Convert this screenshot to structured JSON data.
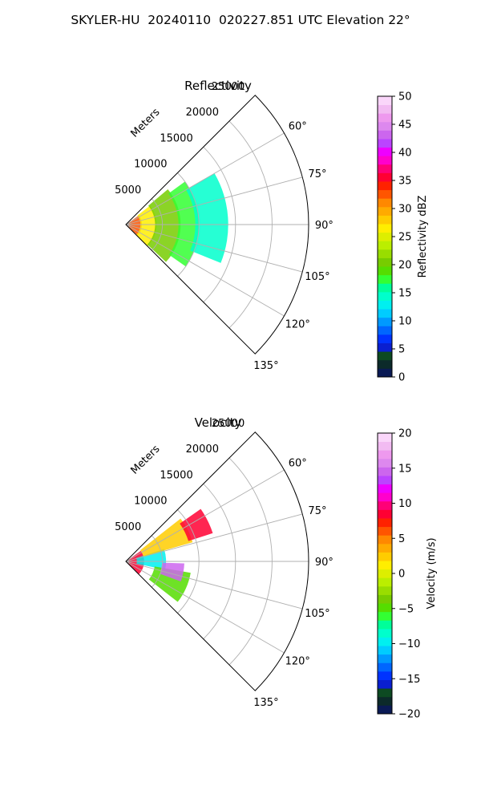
{
  "figure": {
    "title": "SKYLER-HU  20240110  020227.851 UTC Elevation 22°"
  },
  "chart_data": [
    {
      "type": "polar-sector",
      "title": "Reflectivity",
      "radial_label": "Meters",
      "r_ticks": [
        5000,
        10000,
        15000,
        20000,
        25000
      ],
      "r_tick_labels": [
        "5000",
        "10000",
        "15000",
        "20000",
        "25000"
      ],
      "r_max": 25000,
      "theta_range_deg": [
        45,
        135
      ],
      "theta_zero": "N",
      "theta_direction": "clockwise",
      "theta_ticks": [
        60,
        75,
        90,
        105,
        120,
        135
      ],
      "theta_tick_labels": [
        "60°",
        "75°",
        "90°",
        "105°",
        "120°",
        "135°"
      ],
      "grid": true,
      "colorbar": {
        "label": "Reflectivity dBZ",
        "range": [
          0,
          50
        ],
        "ticks": [
          0,
          5,
          10,
          15,
          20,
          25,
          30,
          35,
          40,
          45,
          50
        ],
        "tick_labels": [
          "0",
          "5",
          "10",
          "15",
          "20",
          "25",
          "30",
          "35",
          "40",
          "45",
          "50"
        ],
        "colors": [
          "#0a1a55",
          "#0c2a2a",
          "#0d4a22",
          "#0a1fd0",
          "#0033ff",
          "#0066ff",
          "#0099ff",
          "#00ccff",
          "#00f0f0",
          "#00ffcc",
          "#00ff99",
          "#33ff33",
          "#55dd00",
          "#77cc00",
          "#99dd00",
          "#bbee00",
          "#ddee00",
          "#ffee00",
          "#ffcc00",
          "#ffaa00",
          "#ff8800",
          "#ff5500",
          "#ff2200",
          "#ff0033",
          "#ff0077",
          "#ff00cc",
          "#ee00ff",
          "#bb44ff",
          "#cc66ee",
          "#dd88ee",
          "#ee99ee",
          "#f2bbf2",
          "#fad6fa"
        ]
      },
      "field_bands": [
        {
          "value": 32,
          "r_min": 0,
          "r_max": 2200,
          "az_min": 55,
          "az_max": 133
        },
        {
          "value": 26,
          "r_min": 2000,
          "r_max": 4200,
          "az_min": 52,
          "az_max": 135
        },
        {
          "value": 20,
          "r_min": 4000,
          "r_max": 7500,
          "az_min": 50,
          "az_max": 133
        },
        {
          "value": 17,
          "r_min": 7200,
          "r_max": 10000,
          "az_min": 54,
          "az_max": 125
        },
        {
          "value": 14,
          "r_min": 9500,
          "r_max": 14000,
          "az_min": 60,
          "az_max": 112
        }
      ]
    },
    {
      "type": "polar-sector",
      "title": "Velocity",
      "radial_label": "Meters",
      "r_ticks": [
        5000,
        10000,
        15000,
        20000,
        25000
      ],
      "r_tick_labels": [
        "5000",
        "10000",
        "15000",
        "20000",
        "25000"
      ],
      "r_max": 25000,
      "theta_range_deg": [
        45,
        135
      ],
      "theta_zero": "N",
      "theta_direction": "clockwise",
      "theta_ticks": [
        60,
        75,
        90,
        105,
        120,
        135
      ],
      "theta_tick_labels": [
        "60°",
        "75°",
        "90°",
        "105°",
        "120°",
        "135°"
      ],
      "grid": true,
      "colorbar": {
        "label": "Velocity (m/s)",
        "range": [
          -20,
          20
        ],
        "ticks": [
          -20,
          -15,
          -10,
          -5,
          0,
          5,
          10,
          15,
          20
        ],
        "tick_labels": [
          "−20",
          "−15",
          "−10",
          "−5",
          "0",
          "5",
          "10",
          "15",
          "20"
        ],
        "colors": [
          "#0a1a55",
          "#0c2a2a",
          "#0d4a22",
          "#0a1fd0",
          "#0033ff",
          "#0066ff",
          "#0099ff",
          "#00ccff",
          "#00f0f0",
          "#00ffcc",
          "#00ff99",
          "#33ff33",
          "#55dd00",
          "#77cc00",
          "#99dd00",
          "#bbee00",
          "#ddee00",
          "#ffee00",
          "#ffcc00",
          "#ffaa00",
          "#ff8800",
          "#ff5500",
          "#ff2200",
          "#ff0033",
          "#ff0077",
          "#ff00cc",
          "#ee00ff",
          "#bb44ff",
          "#cc66ee",
          "#dd88ee",
          "#ee99ee",
          "#f2bbf2",
          "#fad6fa"
        ]
      },
      "field_bands": [
        {
          "value": 8,
          "r_min": 0,
          "r_max": 2500,
          "az_min": 55,
          "az_max": 135
        },
        {
          "value": -10,
          "r_min": 1500,
          "r_max": 5500,
          "az_min": 72,
          "az_max": 102
        },
        {
          "value": 2,
          "r_min": 2500,
          "r_max": 9500,
          "az_min": 52,
          "az_max": 74
        },
        {
          "value": -5,
          "r_min": 4000,
          "r_max": 9000,
          "az_min": 100,
          "az_max": 128
        },
        {
          "value": 14,
          "r_min": 5000,
          "r_max": 8000,
          "az_min": 92,
          "az_max": 110
        },
        {
          "value": 9,
          "r_min": 9000,
          "r_max": 12500,
          "az_min": 55,
          "az_max": 72
        }
      ]
    }
  ]
}
